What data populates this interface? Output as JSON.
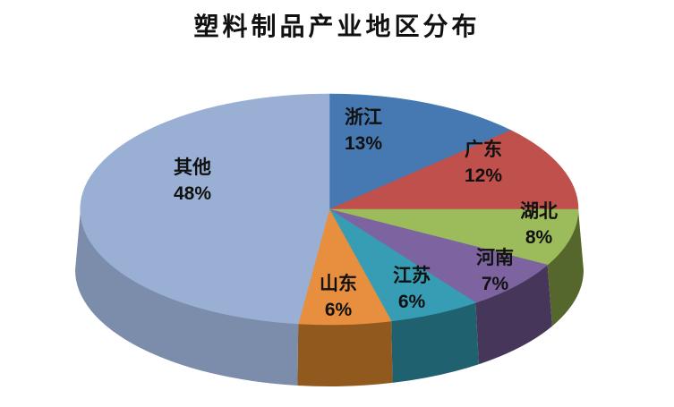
{
  "chart_data": {
    "type": "pie",
    "style": "3d",
    "title": "塑料制品产业地区分布",
    "start_angle_deg": 0,
    "direction": "clockwise",
    "legend": "none",
    "slices": [
      {
        "label": "浙江",
        "value": 13,
        "display": "13%",
        "color": "#4679B2",
        "side_color": "#2E4E78"
      },
      {
        "label": "广东",
        "value": 12,
        "display": "12%",
        "color": "#BF504C",
        "side_color": "#84322E"
      },
      {
        "label": "湖北",
        "value": 8,
        "display": "8%",
        "color": "#9CBB5A",
        "side_color": "#55672C"
      },
      {
        "label": "河南",
        "value": 7,
        "display": "7%",
        "color": "#7D63A0",
        "side_color": "#46365A"
      },
      {
        "label": "江苏",
        "value": 6,
        "display": "6%",
        "color": "#379DB4",
        "side_color": "#1F616E"
      },
      {
        "label": "山东",
        "value": 6,
        "display": "6%",
        "color": "#E78F3E",
        "side_color": "#92591F"
      },
      {
        "label": "其他",
        "value": 48,
        "display": "48%",
        "color": "#99B0D4",
        "side_color": "#7C8DAB"
      }
    ]
  }
}
